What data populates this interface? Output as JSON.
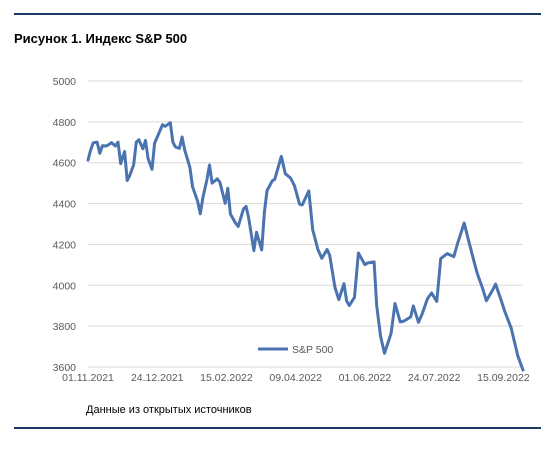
{
  "figure": {
    "title": "Рисунок 1. Индекс S&P 500",
    "source": "Данные из открытых источников"
  },
  "colors": {
    "series": "#4a73b0",
    "grid": "#d9d9d9",
    "axis_text": "#595959",
    "rule": "#1f3864"
  },
  "chart_data": {
    "type": "line",
    "title": "",
    "xlabel": "",
    "ylabel": "",
    "ylim": [
      3600,
      5000
    ],
    "yticks": [
      3600,
      3800,
      4000,
      4200,
      4400,
      4600,
      4800,
      5000
    ],
    "xlim": [
      "2021-11-01",
      "2022-09-30"
    ],
    "xtick_labels": [
      "01.11.2021",
      "24.12.2021",
      "15.02.2022",
      "09.04.2022",
      "01.06.2022",
      "24.07.2022",
      "15.09.2022"
    ],
    "xtick_dates": [
      "2021-11-01",
      "2021-12-24",
      "2022-02-15",
      "2022-04-09",
      "2022-06-01",
      "2022-07-24",
      "2022-09-15"
    ],
    "grid": "horizontal",
    "legend": "bottom-center",
    "series": [
      {
        "name": "S&P 500",
        "x": [
          "2021-11-01",
          "2021-11-03",
          "2021-11-05",
          "2021-11-08",
          "2021-11-10",
          "2021-11-12",
          "2021-11-15",
          "2021-11-17",
          "2021-11-19",
          "2021-11-22",
          "2021-11-24",
          "2021-11-26",
          "2021-11-29",
          "2021-12-01",
          "2021-12-03",
          "2021-12-06",
          "2021-12-08",
          "2021-12-10",
          "2021-12-13",
          "2021-12-15",
          "2021-12-17",
          "2021-12-20",
          "2021-12-22",
          "2021-12-24",
          "2021-12-28",
          "2021-12-30",
          "2022-01-03",
          "2022-01-05",
          "2022-01-07",
          "2022-01-10",
          "2022-01-12",
          "2022-01-14",
          "2022-01-18",
          "2022-01-20",
          "2022-01-24",
          "2022-01-26",
          "2022-01-28",
          "2022-01-31",
          "2022-02-02",
          "2022-02-04",
          "2022-02-08",
          "2022-02-10",
          "2022-02-14",
          "2022-02-16",
          "2022-02-18",
          "2022-02-22",
          "2022-02-24",
          "2022-02-28",
          "2022-03-02",
          "2022-03-04",
          "2022-03-08",
          "2022-03-10",
          "2022-03-14",
          "2022-03-16",
          "2022-03-18",
          "2022-03-22",
          "2022-03-24",
          "2022-03-29",
          "2022-04-01",
          "2022-04-05",
          "2022-04-08",
          "2022-04-12",
          "2022-04-14",
          "2022-04-19",
          "2022-04-22",
          "2022-04-26",
          "2022-04-29",
          "2022-05-03",
          "2022-05-05",
          "2022-05-09",
          "2022-05-12",
          "2022-05-16",
          "2022-05-18",
          "2022-05-20",
          "2022-05-24",
          "2022-05-27",
          "2022-06-01",
          "2022-06-03",
          "2022-06-08",
          "2022-06-10",
          "2022-06-13",
          "2022-06-16",
          "2022-06-21",
          "2022-06-24",
          "2022-06-28",
          "2022-07-01",
          "2022-07-06",
          "2022-07-08",
          "2022-07-12",
          "2022-07-15",
          "2022-07-19",
          "2022-07-22",
          "2022-07-26",
          "2022-07-29",
          "2022-08-03",
          "2022-08-08",
          "2022-08-11",
          "2022-08-16",
          "2022-08-19",
          "2022-08-23",
          "2022-08-26",
          "2022-08-30",
          "2022-09-02",
          "2022-09-07",
          "2022-09-09",
          "2022-09-13",
          "2022-09-16",
          "2022-09-21",
          "2022-09-26",
          "2022-09-30"
        ],
        "values": [
          4613,
          4661,
          4697,
          4701,
          4646,
          4683,
          4682,
          4689,
          4698,
          4682,
          4701,
          4595,
          4655,
          4513,
          4538,
          4591,
          4701,
          4712,
          4668,
          4709,
          4620,
          4568,
          4696,
          4725,
          4786,
          4778,
          4796,
          4700,
          4677,
          4670,
          4726,
          4662,
          4577,
          4483,
          4410,
          4350,
          4432,
          4516,
          4589,
          4500,
          4521,
          4504,
          4401,
          4475,
          4349,
          4304,
          4288,
          4374,
          4386,
          4329,
          4170,
          4260,
          4173,
          4358,
          4463,
          4511,
          4520,
          4631,
          4546,
          4525,
          4488,
          4397,
          4393,
          4462,
          4272,
          4175,
          4132,
          4175,
          4147,
          3991,
          3930,
          4008,
          3923,
          3901,
          3941,
          4158,
          4101,
          4109,
          4115,
          3900,
          3750,
          3667,
          3765,
          3911,
          3821,
          3825,
          3845,
          3899,
          3819,
          3863,
          3936,
          3962,
          3921,
          4130,
          4155,
          4140,
          4207,
          4305,
          4228,
          4128,
          4057,
          3986,
          3924,
          3980,
          4006,
          3932,
          3873,
          3790,
          3655,
          3585
        ]
      }
    ]
  }
}
